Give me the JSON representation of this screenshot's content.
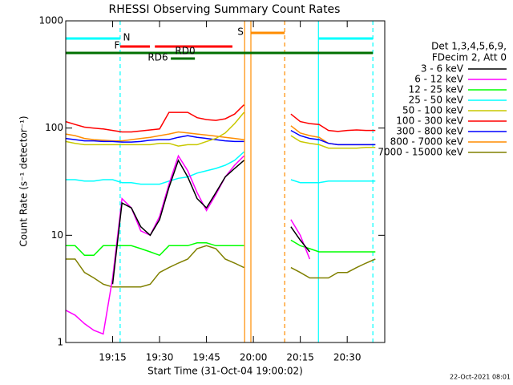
{
  "chart_data": {
    "type": "line",
    "title": "RHESSI Observing Summary Count Rates",
    "xlabel": "Start Time (31-Oct-04 19:00:02)",
    "ylabel": "Count Rate (s⁻¹ detector⁻¹)",
    "timestamp": "22-Oct-2021 08:01",
    "legend_title": [
      "Det 1,3,4,5,6,9,",
      "FDecim 2, Att 0"
    ],
    "log_y": true,
    "xlim": [
      0,
      102
    ],
    "ylim": [
      1,
      1000
    ],
    "xticks": [
      {
        "value": 15,
        "label": "19:15"
      },
      {
        "value": 30,
        "label": "19:30"
      },
      {
        "value": 45,
        "label": "19:45"
      },
      {
        "value": 60,
        "label": "20:00"
      },
      {
        "value": 75,
        "label": "20:15"
      },
      {
        "value": 90,
        "label": "20:30"
      }
    ],
    "yticks": [
      1,
      10,
      100,
      1000
    ],
    "x": [
      0,
      3,
      6,
      9,
      12,
      15,
      18,
      21,
      24,
      27,
      30,
      33,
      36,
      39,
      42,
      45,
      48,
      51,
      54,
      57,
      60,
      63,
      66,
      69,
      72,
      75,
      78,
      81,
      84,
      87,
      90,
      93,
      96,
      99,
      102
    ],
    "series": [
      {
        "name": "3 - 6 keV",
        "color": "#000000",
        "values": [
          null,
          null,
          null,
          null,
          null,
          3.5,
          20,
          18,
          12,
          10,
          14,
          28,
          50,
          35,
          22,
          18,
          25,
          35,
          42,
          50,
          null,
          null,
          null,
          null,
          12,
          9,
          7,
          null,
          null,
          null,
          null,
          null,
          null,
          null,
          null
        ]
      },
      {
        "name": "6 - 12 keV",
        "color": "#ff00ff",
        "values": [
          2,
          1.8,
          1.5,
          1.3,
          1.2,
          4,
          22,
          18,
          11,
          10,
          15,
          30,
          55,
          40,
          25,
          17,
          24,
          35,
          45,
          55,
          null,
          null,
          null,
          null,
          14,
          10,
          6,
          null,
          null,
          null,
          null,
          null,
          null,
          null,
          null
        ]
      },
      {
        "name": "12 - 25 keV",
        "color": "#00ff00",
        "values": [
          8,
          8,
          6.5,
          6.5,
          8,
          8,
          8,
          8,
          7.5,
          7,
          6.5,
          8,
          8,
          8,
          8.5,
          8.5,
          8,
          8,
          8,
          8,
          null,
          null,
          null,
          null,
          9,
          8,
          7.5,
          7,
          7,
          7,
          7,
          7,
          7,
          7,
          null
        ]
      },
      {
        "name": "25 - 50 keV",
        "color": "#00ffff",
        "values": [
          33,
          33,
          32,
          32,
          33,
          33,
          31,
          31,
          30,
          30,
          30,
          32,
          34,
          35,
          38,
          40,
          42,
          45,
          50,
          60,
          null,
          null,
          null,
          null,
          33,
          31,
          31,
          31,
          32,
          32,
          32,
          32,
          32,
          32,
          null
        ]
      },
      {
        "name": "50 - 100 keV",
        "color": "#c8c800",
        "values": [
          75,
          72,
          70,
          70,
          70,
          70,
          70,
          70,
          70,
          70,
          72,
          72,
          68,
          70,
          70,
          75,
          80,
          90,
          110,
          140,
          null,
          null,
          null,
          null,
          85,
          75,
          72,
          70,
          65,
          65,
          65,
          65,
          66,
          66,
          null
        ]
      },
      {
        "name": "100 - 300 keV",
        "color": "#ff0000",
        "values": [
          115,
          108,
          102,
          100,
          98,
          95,
          92,
          92,
          94,
          96,
          98,
          140,
          140,
          140,
          125,
          120,
          118,
          122,
          135,
          165,
          null,
          null,
          null,
          null,
          135,
          115,
          110,
          108,
          95,
          93,
          95,
          96,
          95,
          95,
          null
        ]
      },
      {
        "name": "300 - 800 keV",
        "color": "#0000ff",
        "values": [
          80,
          78,
          76,
          76,
          75,
          75,
          74,
          74,
          75,
          77,
          78,
          78,
          82,
          85,
          82,
          80,
          78,
          76,
          75,
          75,
          null,
          null,
          null,
          null,
          95,
          85,
          80,
          78,
          72,
          70,
          70,
          70,
          70,
          70,
          null
        ]
      },
      {
        "name": "800 - 7000 keV",
        "color": "#ff8c00",
        "values": [
          88,
          85,
          80,
          78,
          77,
          76,
          76,
          78,
          80,
          82,
          85,
          88,
          92,
          90,
          88,
          86,
          84,
          82,
          80,
          78,
          null,
          null,
          null,
          null,
          105,
          90,
          85,
          82,
          72,
          70,
          70,
          70,
          70,
          70,
          null
        ]
      },
      {
        "name": "7000 - 15000 keV",
        "color": "#808000",
        "values": [
          6,
          6,
          4.5,
          4,
          3.5,
          3.3,
          3.3,
          3.3,
          3.3,
          3.5,
          4.5,
          5,
          5.5,
          6,
          7.5,
          8,
          7.5,
          6,
          5.5,
          5,
          null,
          null,
          null,
          null,
          5,
          4.5,
          4,
          4,
          4,
          4.5,
          4.5,
          5,
          5.5,
          6,
          null
        ]
      }
    ],
    "flags": [
      {
        "label": "N",
        "color": "#00ffff",
        "intervals": [
          [
            0,
            17.4
          ],
          [
            80.8,
            98.2
          ]
        ]
      },
      {
        "label": "F",
        "color": "#ff0000",
        "intervals": [
          [
            17.4,
            26.9
          ],
          [
            28.5,
            53.3
          ]
        ]
      },
      {
        "label": "RD0",
        "color": "#007000",
        "intervals": [
          [
            0,
            98.2
          ]
        ]
      },
      {
        "label": "RD6",
        "color": "#007000",
        "intervals": [
          [
            33.6,
            41.3
          ]
        ]
      },
      {
        "label": "S",
        "color": "#ff8c00",
        "intervals": [
          [
            59.2,
            70
          ]
        ]
      }
    ],
    "vlines": [
      {
        "x": 17.4,
        "color": "#00ffff",
        "style": "dashed"
      },
      {
        "x": 57.2,
        "color": "#ff8c00",
        "style": "solid"
      },
      {
        "x": 59.2,
        "color": "#ff8c00",
        "style": "solid"
      },
      {
        "x": 70,
        "color": "#ff8c00",
        "style": "dashed"
      },
      {
        "x": 80.8,
        "color": "#00ffff",
        "style": "solid"
      },
      {
        "x": 98.2,
        "color": "#00ffff",
        "style": "dashed"
      }
    ]
  }
}
